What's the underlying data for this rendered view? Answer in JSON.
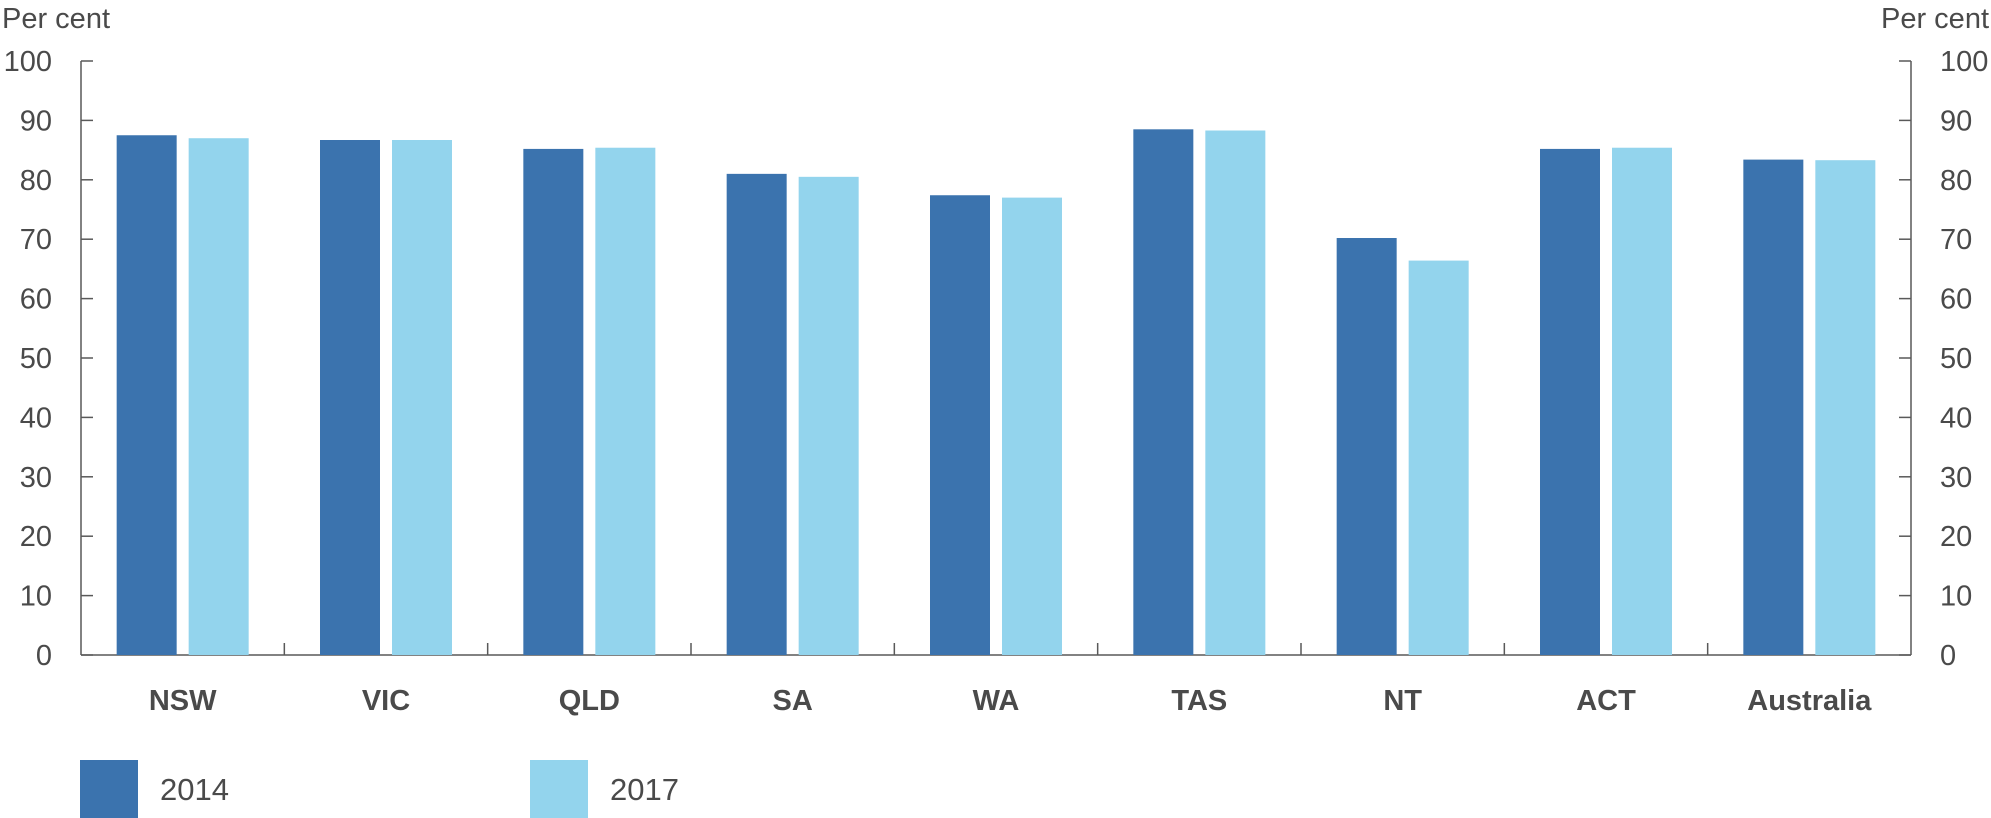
{
  "chart_data": {
    "type": "bar",
    "y_unit_left": "Per cent",
    "y_unit_right": "Per cent",
    "categories": [
      "NSW",
      "VIC",
      "QLD",
      "SA",
      "WA",
      "TAS",
      "NT",
      "ACT",
      "Australia"
    ],
    "series": [
      {
        "name": "2014",
        "color": "#3b73ae",
        "values": [
          87.5,
          86.7,
          85.2,
          81.0,
          77.4,
          88.5,
          70.2,
          85.2,
          83.4
        ]
      },
      {
        "name": "2017",
        "color": "#93d4ed",
        "values": [
          87.0,
          86.7,
          85.4,
          80.5,
          77.0,
          88.3,
          66.4,
          85.4,
          83.3
        ]
      }
    ],
    "ylim": [
      0,
      100
    ],
    "yticks": [
      "0",
      "10",
      "20",
      "30",
      "40",
      "50",
      "60",
      "70",
      "80",
      "90",
      "100"
    ],
    "grid": false,
    "dual_y_axis": true,
    "legend_position": "bottom-left"
  }
}
